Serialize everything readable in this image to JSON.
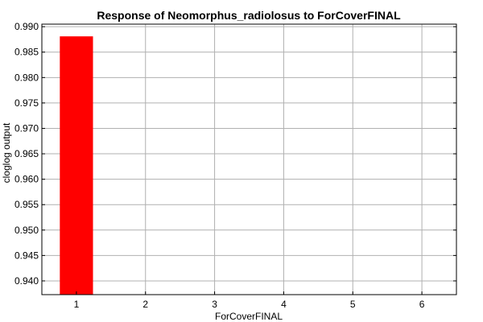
{
  "chart_data": {
    "type": "bar",
    "title": "Response of Neomorphus_radiolosus to ForCoverFINAL",
    "xlabel": "ForCoverFINAL",
    "ylabel": "cloglog output",
    "categories": [
      "1",
      "2",
      "3",
      "4",
      "5",
      "6"
    ],
    "values": [
      0.9881,
      0.9373,
      0.9373,
      0.9373,
      0.9373,
      0.9373
    ],
    "ylim": [
      0.9373,
      0.9905
    ],
    "yticks": [
      0.94,
      0.945,
      0.95,
      0.955,
      0.96,
      0.965,
      0.97,
      0.975,
      0.98,
      0.985,
      0.99
    ],
    "ytick_labels": [
      "0.940",
      "0.945",
      "0.950",
      "0.955",
      "0.960",
      "0.965",
      "0.970",
      "0.975",
      "0.980",
      "0.985",
      "0.990"
    ],
    "grid": true,
    "bar_color": "#ff0000",
    "grid_color": "#b0b0b0"
  }
}
